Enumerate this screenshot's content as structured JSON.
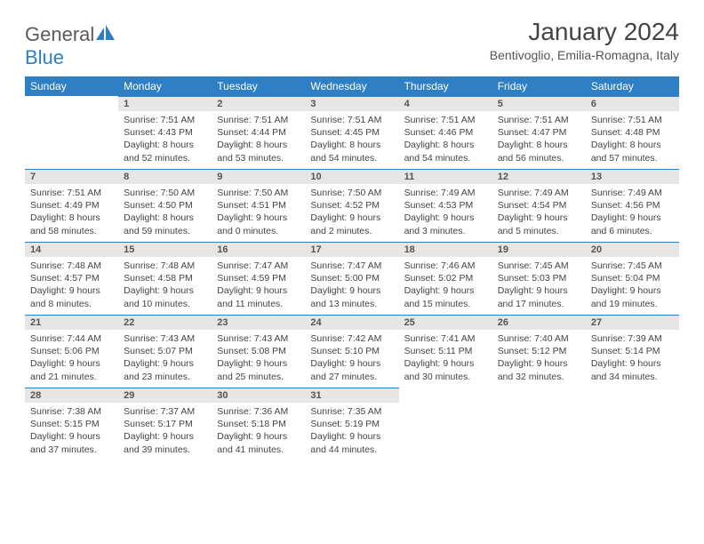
{
  "brand": {
    "text1": "General",
    "text2": "Blue"
  },
  "title": "January 2024",
  "location": "Bentivoglio, Emilia-Romagna, Italy",
  "colors": {
    "header_bg": "#2f7fc4",
    "header_text": "#ffffff",
    "daynum_bg": "#e6e6e6",
    "daynum_border": "#2f7fc4",
    "text": "#444444",
    "background": "#ffffff"
  },
  "dayNames": [
    "Sunday",
    "Monday",
    "Tuesday",
    "Wednesday",
    "Thursday",
    "Friday",
    "Saturday"
  ],
  "weeks": [
    [
      null,
      {
        "n": "1",
        "sr": "7:51 AM",
        "ss": "4:43 PM",
        "dl": "8 hours and 52 minutes."
      },
      {
        "n": "2",
        "sr": "7:51 AM",
        "ss": "4:44 PM",
        "dl": "8 hours and 53 minutes."
      },
      {
        "n": "3",
        "sr": "7:51 AM",
        "ss": "4:45 PM",
        "dl": "8 hours and 54 minutes."
      },
      {
        "n": "4",
        "sr": "7:51 AM",
        "ss": "4:46 PM",
        "dl": "8 hours and 54 minutes."
      },
      {
        "n": "5",
        "sr": "7:51 AM",
        "ss": "4:47 PM",
        "dl": "8 hours and 56 minutes."
      },
      {
        "n": "6",
        "sr": "7:51 AM",
        "ss": "4:48 PM",
        "dl": "8 hours and 57 minutes."
      }
    ],
    [
      {
        "n": "7",
        "sr": "7:51 AM",
        "ss": "4:49 PM",
        "dl": "8 hours and 58 minutes."
      },
      {
        "n": "8",
        "sr": "7:50 AM",
        "ss": "4:50 PM",
        "dl": "8 hours and 59 minutes."
      },
      {
        "n": "9",
        "sr": "7:50 AM",
        "ss": "4:51 PM",
        "dl": "9 hours and 0 minutes."
      },
      {
        "n": "10",
        "sr": "7:50 AM",
        "ss": "4:52 PM",
        "dl": "9 hours and 2 minutes."
      },
      {
        "n": "11",
        "sr": "7:49 AM",
        "ss": "4:53 PM",
        "dl": "9 hours and 3 minutes."
      },
      {
        "n": "12",
        "sr": "7:49 AM",
        "ss": "4:54 PM",
        "dl": "9 hours and 5 minutes."
      },
      {
        "n": "13",
        "sr": "7:49 AM",
        "ss": "4:56 PM",
        "dl": "9 hours and 6 minutes."
      }
    ],
    [
      {
        "n": "14",
        "sr": "7:48 AM",
        "ss": "4:57 PM",
        "dl": "9 hours and 8 minutes."
      },
      {
        "n": "15",
        "sr": "7:48 AM",
        "ss": "4:58 PM",
        "dl": "9 hours and 10 minutes."
      },
      {
        "n": "16",
        "sr": "7:47 AM",
        "ss": "4:59 PM",
        "dl": "9 hours and 11 minutes."
      },
      {
        "n": "17",
        "sr": "7:47 AM",
        "ss": "5:00 PM",
        "dl": "9 hours and 13 minutes."
      },
      {
        "n": "18",
        "sr": "7:46 AM",
        "ss": "5:02 PM",
        "dl": "9 hours and 15 minutes."
      },
      {
        "n": "19",
        "sr": "7:45 AM",
        "ss": "5:03 PM",
        "dl": "9 hours and 17 minutes."
      },
      {
        "n": "20",
        "sr": "7:45 AM",
        "ss": "5:04 PM",
        "dl": "9 hours and 19 minutes."
      }
    ],
    [
      {
        "n": "21",
        "sr": "7:44 AM",
        "ss": "5:06 PM",
        "dl": "9 hours and 21 minutes."
      },
      {
        "n": "22",
        "sr": "7:43 AM",
        "ss": "5:07 PM",
        "dl": "9 hours and 23 minutes."
      },
      {
        "n": "23",
        "sr": "7:43 AM",
        "ss": "5:08 PM",
        "dl": "9 hours and 25 minutes."
      },
      {
        "n": "24",
        "sr": "7:42 AM",
        "ss": "5:10 PM",
        "dl": "9 hours and 27 minutes."
      },
      {
        "n": "25",
        "sr": "7:41 AM",
        "ss": "5:11 PM",
        "dl": "9 hours and 30 minutes."
      },
      {
        "n": "26",
        "sr": "7:40 AM",
        "ss": "5:12 PM",
        "dl": "9 hours and 32 minutes."
      },
      {
        "n": "27",
        "sr": "7:39 AM",
        "ss": "5:14 PM",
        "dl": "9 hours and 34 minutes."
      }
    ],
    [
      {
        "n": "28",
        "sr": "7:38 AM",
        "ss": "5:15 PM",
        "dl": "9 hours and 37 minutes."
      },
      {
        "n": "29",
        "sr": "7:37 AM",
        "ss": "5:17 PM",
        "dl": "9 hours and 39 minutes."
      },
      {
        "n": "30",
        "sr": "7:36 AM",
        "ss": "5:18 PM",
        "dl": "9 hours and 41 minutes."
      },
      {
        "n": "31",
        "sr": "7:35 AM",
        "ss": "5:19 PM",
        "dl": "9 hours and 44 minutes."
      },
      null,
      null,
      null
    ]
  ],
  "labels": {
    "sunrise": "Sunrise:",
    "sunset": "Sunset:",
    "daylight": "Daylight:"
  }
}
